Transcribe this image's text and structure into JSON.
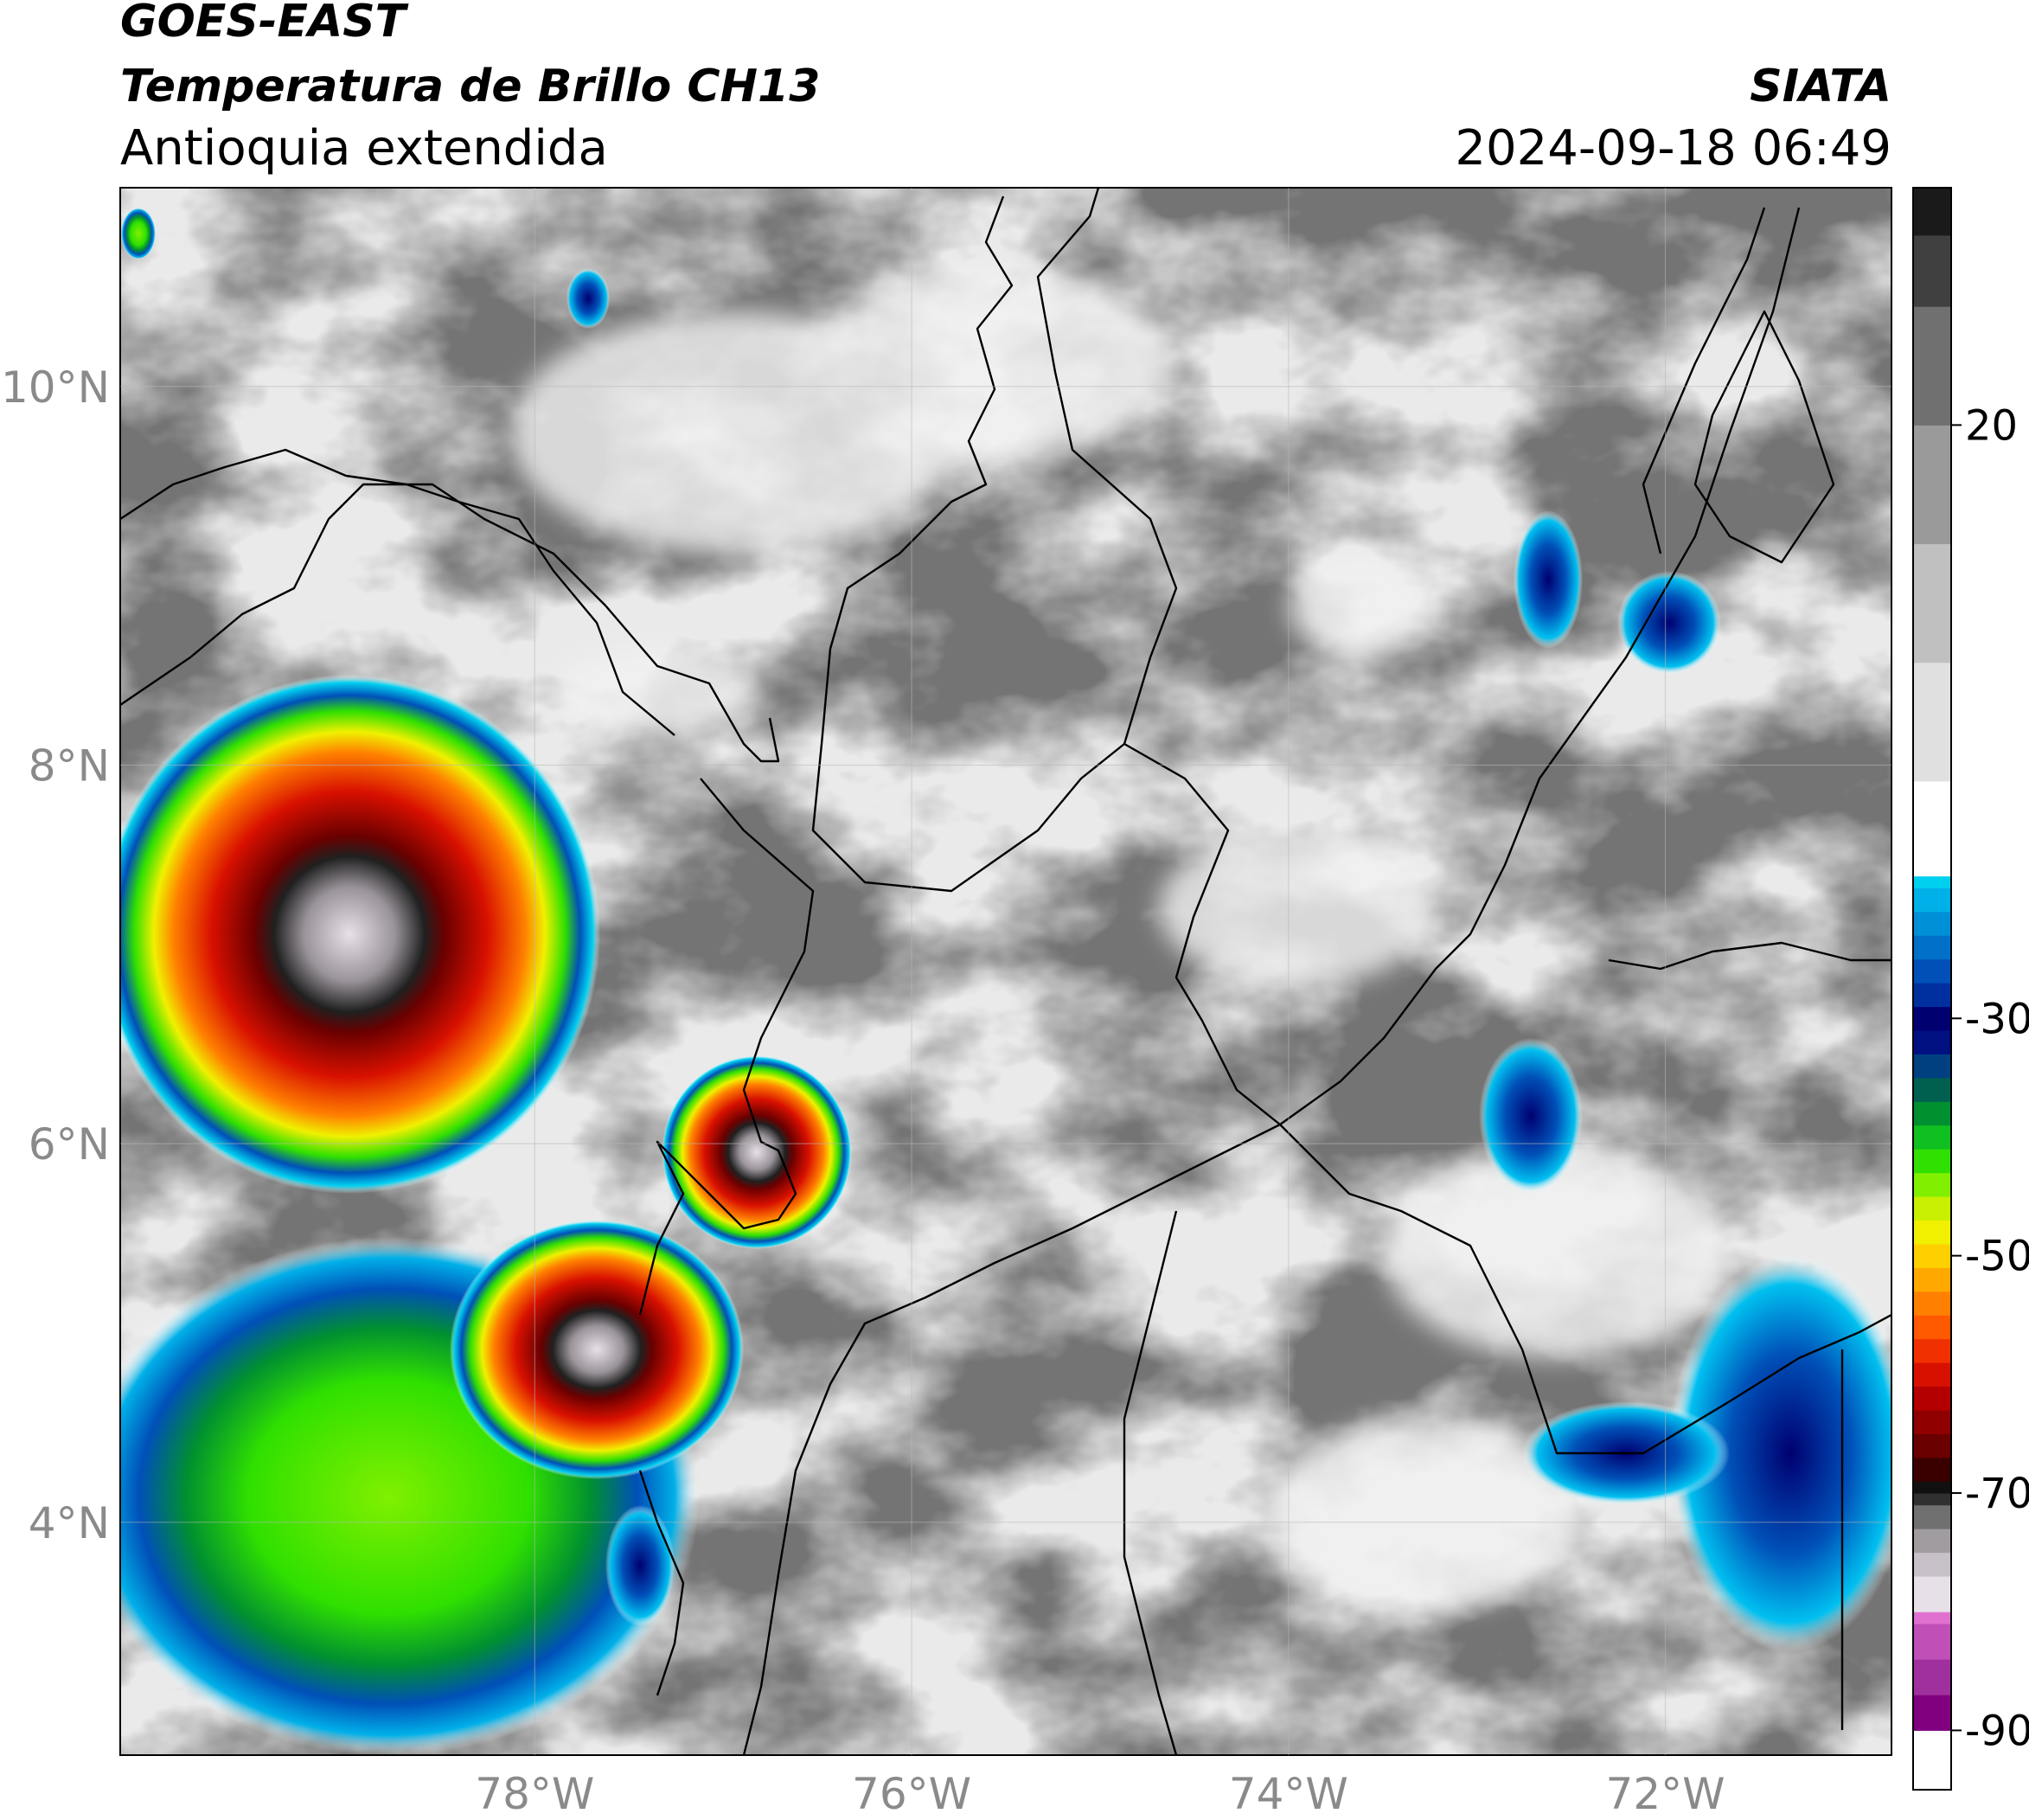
{
  "header": {
    "title": "GOES-EAST",
    "subtitle": "Temperatura de Brillo CH13",
    "region": "Antioquia extendida",
    "source": "SIATA",
    "datetime": "2024-09-18 06:49"
  },
  "map": {
    "lonlim": [
      -80.2,
      -70.8
    ],
    "latlim": [
      2.77,
      11.05
    ],
    "lonticks": [
      {
        "value": -78,
        "label": "78°W"
      },
      {
        "value": -76,
        "label": "76°W"
      },
      {
        "value": -74,
        "label": "74°W"
      },
      {
        "value": -72,
        "label": "72°W"
      }
    ],
    "latticks": [
      {
        "value": 10,
        "label": "10°N"
      },
      {
        "value": 8,
        "label": "8°N"
      },
      {
        "value": 6,
        "label": "6°N"
      },
      {
        "value": 4,
        "label": "4°N"
      }
    ],
    "grid": true
  },
  "colorbar": {
    "lim": [
      -95,
      40
    ],
    "ticks": [
      20,
      -30,
      -50,
      -70,
      -90
    ],
    "stops": [
      {
        "value": -95,
        "color": "#ffffff"
      },
      {
        "value": -90,
        "color": "#800080"
      },
      {
        "value": -87,
        "color": "#a0309e"
      },
      {
        "value": -84,
        "color": "#c050b8"
      },
      {
        "value": -81,
        "color": "#e070d0"
      },
      {
        "value": -80,
        "color": "#e8e0e8"
      },
      {
        "value": -77,
        "color": "#c8c0c8"
      },
      {
        "value": -75,
        "color": "#a09ca0"
      },
      {
        "value": -73,
        "color": "#707070"
      },
      {
        "value": -71,
        "color": "#303030"
      },
      {
        "value": -70,
        "color": "#101010"
      },
      {
        "value": -69,
        "color": "#3a0000"
      },
      {
        "value": -67,
        "color": "#6a0000"
      },
      {
        "value": -65,
        "color": "#900000"
      },
      {
        "value": -63,
        "color": "#b40000"
      },
      {
        "value": -61,
        "color": "#d81000"
      },
      {
        "value": -59,
        "color": "#f03000"
      },
      {
        "value": -57,
        "color": "#ff5a00"
      },
      {
        "value": -55,
        "color": "#ff8000"
      },
      {
        "value": -53,
        "color": "#ffa800"
      },
      {
        "value": -51,
        "color": "#ffd000"
      },
      {
        "value": -49,
        "color": "#f0f000"
      },
      {
        "value": -47,
        "color": "#c8f000"
      },
      {
        "value": -45,
        "color": "#80f000"
      },
      {
        "value": -43,
        "color": "#30e000"
      },
      {
        "value": -41,
        "color": "#10c020"
      },
      {
        "value": -39,
        "color": "#009030"
      },
      {
        "value": -37,
        "color": "#006050"
      },
      {
        "value": -35,
        "color": "#004080"
      },
      {
        "value": -33,
        "color": "#001080"
      },
      {
        "value": -31,
        "color": "#000070"
      },
      {
        "value": -29,
        "color": "#0030a0"
      },
      {
        "value": -27,
        "color": "#0050b8"
      },
      {
        "value": -25,
        "color": "#0070c8"
      },
      {
        "value": -23,
        "color": "#0090d8"
      },
      {
        "value": -21,
        "color": "#00b0e8"
      },
      {
        "value": -19,
        "color": "#00d0f0"
      },
      {
        "value": -18,
        "color": "#ffffff"
      },
      {
        "value": -10,
        "color": "#e0e0e0"
      },
      {
        "value": 0,
        "color": "#c0c0c0"
      },
      {
        "value": 10,
        "color": "#9a9a9a"
      },
      {
        "value": 20,
        "color": "#707070"
      },
      {
        "value": 30,
        "color": "#404040"
      },
      {
        "value": 36,
        "color": "#1a1a1a"
      }
    ]
  }
}
